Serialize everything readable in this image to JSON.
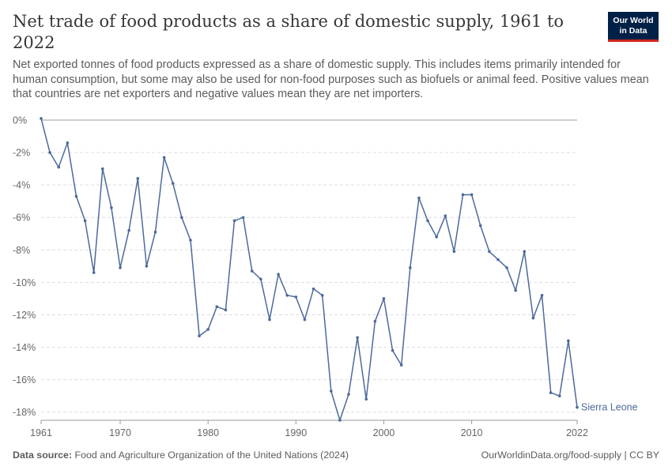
{
  "header": {
    "title": "Net trade of food products as a share of domestic supply, 1961 to 2022",
    "subtitle": "Net exported tonnes of food products expressed as a share of domestic supply. This includes items primarily intended for human consumption, but some may also be used for non-food purposes such as biofuels or animal feed. Positive values mean that countries are net exporters and negative values mean they are net importers.",
    "logo_line1": "Our World",
    "logo_line2": "in Data"
  },
  "footer": {
    "source_label": "Data source:",
    "source_text": "Food and Agriculture Organization of the United Nations (2024)",
    "right_text": "OurWorldinData.org/food-supply | CC BY"
  },
  "colors": {
    "series": "#4c6a9c",
    "grid": "#dddddd",
    "zero_line": "#a1a1a1",
    "logo_bg": "#002147",
    "logo_accent": "#ce261e"
  },
  "chart_data": {
    "type": "line",
    "title": "Net trade of food products as a share of domestic supply, 1961 to 2022",
    "xlabel": "",
    "ylabel": "",
    "xlim": [
      1961,
      2022
    ],
    "ylim": [
      -18.5,
      0
    ],
    "x_ticks": [
      1961,
      1970,
      1980,
      1990,
      2000,
      2010,
      2022
    ],
    "y_ticks": [
      0,
      -2,
      -4,
      -6,
      -8,
      -10,
      -12,
      -14,
      -16,
      -18
    ],
    "y_tick_labels": [
      "0%",
      "-2%",
      "-4%",
      "-6%",
      "-8%",
      "-10%",
      "-12%",
      "-14%",
      "-16%",
      "-18%"
    ],
    "grid": "horizontal dashed",
    "series": [
      {
        "name": "Sierra Leone",
        "x": [
          1961,
          1962,
          1963,
          1964,
          1965,
          1966,
          1967,
          1968,
          1969,
          1970,
          1971,
          1972,
          1973,
          1974,
          1975,
          1976,
          1977,
          1978,
          1979,
          1980,
          1981,
          1982,
          1983,
          1984,
          1985,
          1986,
          1987,
          1988,
          1989,
          1990,
          1991,
          1992,
          1993,
          1994,
          1995,
          1996,
          1997,
          1998,
          1999,
          2000,
          2001,
          2002,
          2003,
          2004,
          2005,
          2006,
          2007,
          2008,
          2009,
          2010,
          2011,
          2012,
          2013,
          2014,
          2015,
          2016,
          2017,
          2018,
          2019,
          2020,
          2021,
          2022
        ],
        "values": [
          0.1,
          -2.0,
          -2.9,
          -1.4,
          -4.7,
          -6.2,
          -9.4,
          -3.0,
          -5.4,
          -9.1,
          -6.8,
          -3.6,
          -9.0,
          -6.9,
          -2.3,
          -3.9,
          -6.0,
          -7.4,
          -13.3,
          -12.9,
          -11.5,
          -11.7,
          -6.2,
          -6.0,
          -9.3,
          -9.8,
          -12.3,
          -9.5,
          -10.8,
          -10.9,
          -12.3,
          -10.4,
          -10.8,
          -16.7,
          -18.5,
          -16.9,
          -13.4,
          -17.2,
          -12.4,
          -11.0,
          -14.2,
          -15.1,
          -9.1,
          -4.8,
          -6.2,
          -7.2,
          -5.9,
          -8.1,
          -4.6,
          -4.6,
          -6.5,
          -8.1,
          -8.6,
          -9.1,
          -10.5,
          -8.1,
          -12.2,
          -10.8,
          -16.8,
          -17.0,
          -13.6,
          -17.7
        ]
      }
    ]
  }
}
